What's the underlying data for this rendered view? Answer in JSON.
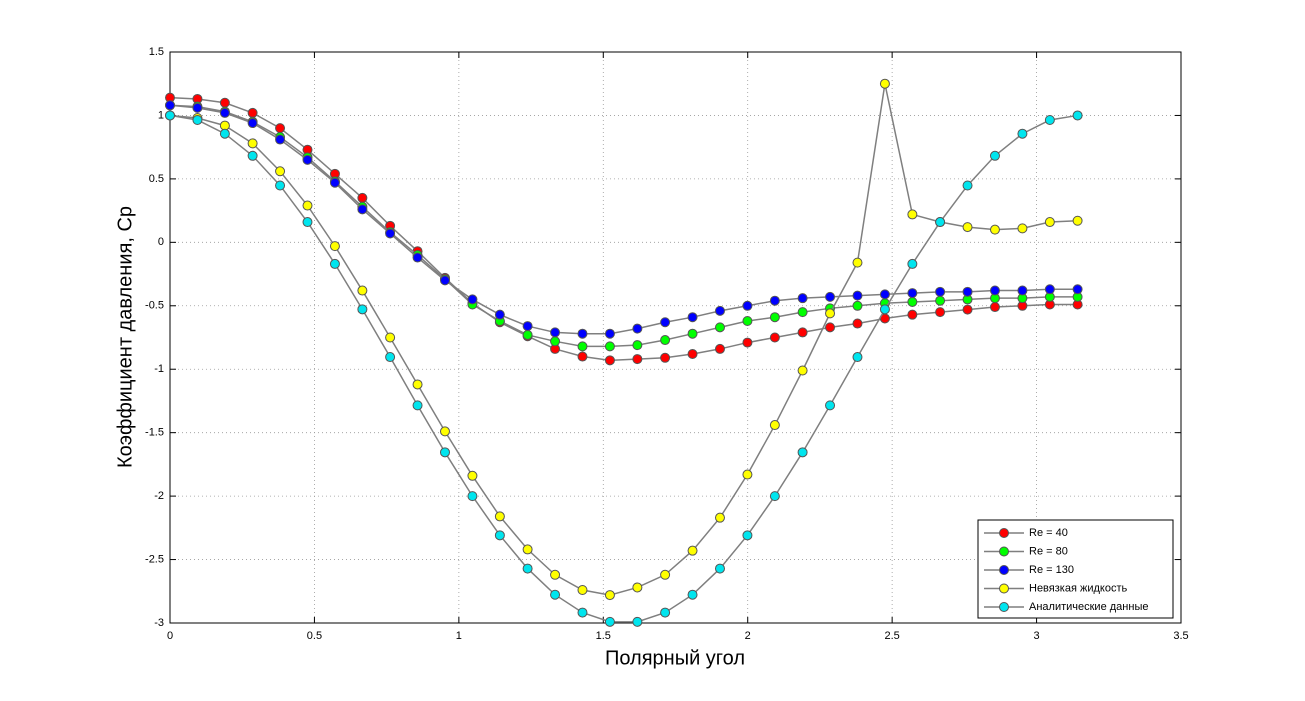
{
  "chart_data": {
    "type": "line",
    "xlabel": "Полярный угол",
    "ylabel": "Коэффициент давления, Ср",
    "x": [
      0,
      0.095,
      0.19,
      0.286,
      0.381,
      0.476,
      0.571,
      0.666,
      0.762,
      0.857,
      0.952,
      1.047,
      1.142,
      1.238,
      1.333,
      1.428,
      1.523,
      1.618,
      1.714,
      1.809,
      1.904,
      1.999,
      2.094,
      2.19,
      2.285,
      2.38,
      2.475,
      2.57,
      2.666,
      2.761,
      2.856,
      2.951,
      3.046,
      3.142
    ],
    "series": [
      {
        "name": "Re = 40",
        "color": "#ff0000",
        "values": [
          1.14,
          1.13,
          1.1,
          1.02,
          0.9,
          0.73,
          0.54,
          0.35,
          0.13,
          -0.07,
          -0.28,
          -0.48,
          -0.63,
          -0.74,
          -0.84,
          -0.9,
          -0.93,
          -0.92,
          -0.91,
          -0.88,
          -0.84,
          -0.79,
          -0.75,
          -0.71,
          -0.67,
          -0.64,
          -0.6,
          -0.57,
          -0.55,
          -0.53,
          -0.51,
          -0.5,
          -0.49,
          -0.49
        ]
      },
      {
        "name": "Re = 80",
        "color": "#00ff00",
        "values": [
          1.08,
          1.07,
          1.03,
          0.95,
          0.83,
          0.67,
          0.48,
          0.28,
          0.08,
          -0.1,
          -0.29,
          -0.49,
          -0.62,
          -0.73,
          -0.78,
          -0.82,
          -0.82,
          -0.81,
          -0.77,
          -0.72,
          -0.67,
          -0.62,
          -0.59,
          -0.55,
          -0.52,
          -0.5,
          -0.48,
          -0.47,
          -0.46,
          -0.45,
          -0.44,
          -0.44,
          -0.43,
          -0.43
        ]
      },
      {
        "name": "Re = 130",
        "color": "#0000ff",
        "values": [
          1.08,
          1.06,
          1.02,
          0.94,
          0.81,
          0.65,
          0.47,
          0.26,
          0.07,
          -0.12,
          -0.3,
          -0.45,
          -0.57,
          -0.66,
          -0.71,
          -0.72,
          -0.72,
          -0.68,
          -0.63,
          -0.59,
          -0.54,
          -0.5,
          -0.46,
          -0.44,
          -0.43,
          -0.42,
          -0.41,
          -0.4,
          -0.39,
          -0.39,
          -0.38,
          -0.38,
          -0.37,
          -0.37
        ]
      },
      {
        "name": "Невязкая жидкость",
        "color": "#ffff00",
        "values": [
          1.0,
          0.98,
          0.92,
          0.78,
          0.56,
          0.29,
          -0.03,
          -0.38,
          -0.75,
          -1.12,
          -1.49,
          -1.84,
          -2.16,
          -2.42,
          -2.62,
          -2.74,
          -2.78,
          -2.72,
          -2.62,
          -2.43,
          -2.17,
          -1.83,
          -1.44,
          -1.01,
          -0.56,
          -0.16,
          1.25,
          0.22,
          0.16,
          0.12,
          0.1,
          0.11,
          0.16,
          0.17
        ]
      },
      {
        "name": "Аналитические данные",
        "color": "#00e5ee",
        "values": [
          1.0,
          0.964,
          0.856,
          0.682,
          0.448,
          0.16,
          -0.17,
          -0.528,
          -0.904,
          -1.285,
          -1.655,
          -2.0,
          -2.309,
          -2.571,
          -2.777,
          -2.918,
          -2.991,
          -2.991,
          -2.918,
          -2.777,
          -2.571,
          -2.309,
          -2.0,
          -1.655,
          -1.285,
          -0.904,
          -0.528,
          -0.17,
          0.16,
          0.448,
          0.682,
          0.856,
          0.964,
          1.0
        ]
      }
    ],
    "line_color": "#7f7f7f",
    "xlim": [
      0,
      3.5
    ],
    "xticks": [
      0,
      0.5,
      1,
      1.5,
      2,
      2.5,
      3,
      3.5
    ],
    "ylim": [
      -3,
      1.5
    ],
    "yticks": [
      -3,
      -2.5,
      -2,
      -1.5,
      -1,
      -0.5,
      0,
      0.5,
      1,
      1.5
    ],
    "grid": true,
    "legend": "lower right"
  }
}
